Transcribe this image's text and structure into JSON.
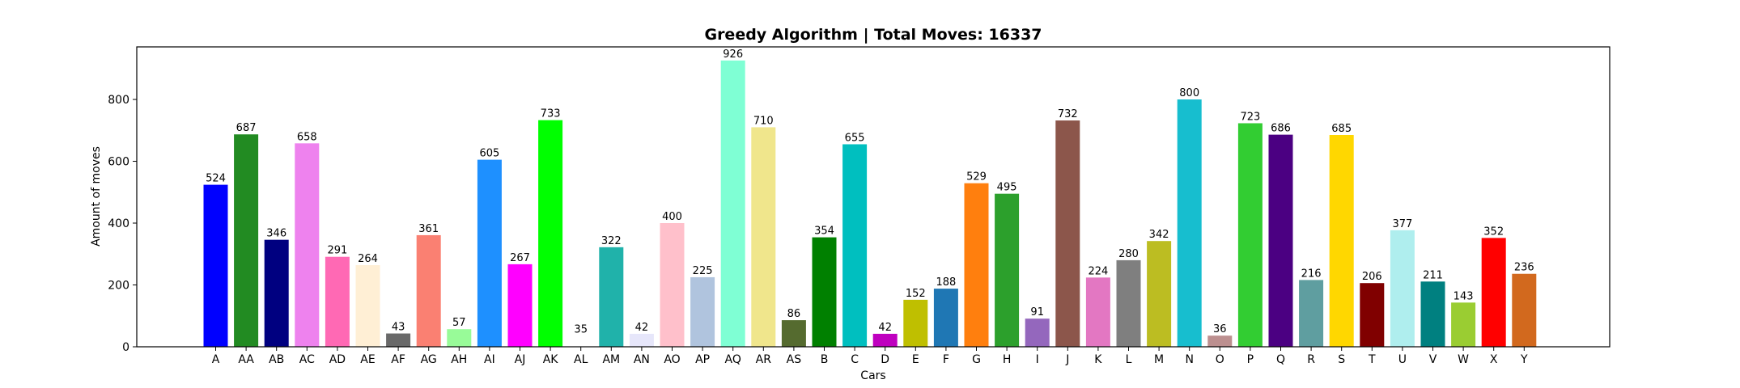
{
  "chart_data": {
    "type": "bar",
    "title": "Greedy Algorithm | Total Moves: 16337",
    "xlabel": "Cars",
    "ylabel": "Amount of moves",
    "ylim": [
      0,
      970
    ],
    "yticks": [
      0,
      200,
      400,
      600,
      800
    ],
    "grid": false,
    "legend": "none",
    "categories": [
      "A",
      "AA",
      "AB",
      "AC",
      "AD",
      "AE",
      "AF",
      "AG",
      "AH",
      "AI",
      "AJ",
      "AK",
      "AL",
      "AM",
      "AN",
      "AO",
      "AP",
      "AQ",
      "AR",
      "AS",
      "B",
      "C",
      "D",
      "E",
      "F",
      "G",
      "H",
      "I",
      "J",
      "K",
      "L",
      "M",
      "N",
      "O",
      "P",
      "Q",
      "R",
      "S",
      "T",
      "U",
      "V",
      "W",
      "X",
      "Y"
    ],
    "values": [
      524,
      687,
      346,
      658,
      291,
      264,
      43,
      361,
      57,
      605,
      267,
      733,
      35,
      322,
      42,
      400,
      225,
      926,
      710,
      86,
      354,
      655,
      42,
      152,
      188,
      529,
      495,
      91,
      732,
      224,
      280,
      342,
      800,
      36,
      723,
      686,
      216,
      685,
      206,
      377,
      211,
      143,
      352,
      236
    ],
    "colors": [
      "#0000ff",
      "#228b22",
      "#000080",
      "#ee82ee",
      "#ff69b4",
      "#ffefd5",
      "#696969",
      "#fa8072",
      "#98fb98",
      "#1e90ff",
      "#ff00ff",
      "#00ff00",
      "#ffffff",
      "#20b2aa",
      "#e6e6fa",
      "#ffc0cb",
      "#b0c4de",
      "#7fffd4",
      "#f0e68c",
      "#556b2f",
      "#008000",
      "#00bfbf",
      "#bf00bf",
      "#bfbf00",
      "#1f77b4",
      "#ff7f0e",
      "#2ca02c",
      "#9467bd",
      "#8c564b",
      "#e377c2",
      "#7f7f7f",
      "#bcbd22",
      "#17becf",
      "#bc8f8f",
      "#32cd32",
      "#4b0082",
      "#5f9ea0",
      "#ffd700",
      "#800000",
      "#afeeee",
      "#008080",
      "#9acd32",
      "#ff0000",
      "#d2691e"
    ]
  }
}
